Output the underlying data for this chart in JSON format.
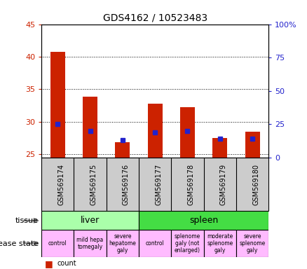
{
  "title": "GDS4162 / 10523483",
  "samples": [
    "GSM569174",
    "GSM569175",
    "GSM569176",
    "GSM569177",
    "GSM569178",
    "GSM569179",
    "GSM569180"
  ],
  "counts": [
    40.8,
    33.8,
    26.8,
    32.8,
    32.2,
    27.5,
    28.5
  ],
  "percentile_ranks": [
    31.5,
    30.0,
    28.5,
    29.8,
    30.0,
    28.8,
    28.8
  ],
  "percentile_ranks_pct": [
    25,
    20,
    13,
    19,
    20,
    14,
    14
  ],
  "ylim_left": [
    24.5,
    45
  ],
  "ylim_right": [
    0,
    100
  ],
  "yticks_left": [
    25,
    30,
    35,
    40,
    45
  ],
  "yticks_right": [
    0,
    25,
    50,
    75,
    100
  ],
  "ytick_labels_left": [
    "25",
    "30",
    "35",
    "40",
    "45"
  ],
  "ytick_labels_right": [
    "0",
    "25",
    "50",
    "75",
    "100%"
  ],
  "bar_color": "#cc2200",
  "dot_color": "#2222cc",
  "tissue_groups": [
    {
      "label": "liver",
      "start": 0,
      "end": 2,
      "color": "#aaffaa"
    },
    {
      "label": "spleen",
      "start": 3,
      "end": 6,
      "color": "#44dd44"
    }
  ],
  "disease_states": [
    {
      "label": "control",
      "col": 0,
      "color": "#ffbbff"
    },
    {
      "label": "mild hepa\ntomegaly",
      "col": 1,
      "color": "#ffbbff"
    },
    {
      "label": "severe\nhepatome\ngaly",
      "col": 2,
      "color": "#ffbbff"
    },
    {
      "label": "control",
      "col": 3,
      "color": "#ffbbff"
    },
    {
      "label": "splenome\ngaly (not\nenlarged)",
      "col": 4,
      "color": "#ffbbff"
    },
    {
      "label": "moderate\nsplenome\ngaly",
      "col": 5,
      "color": "#ffbbff"
    },
    {
      "label": "severe\nsplenome\ngaly",
      "col": 6,
      "color": "#ffbbff"
    }
  ],
  "sample_box_color": "#cccccc",
  "plot_bg": "#ffffff",
  "left_axis_color": "#cc2200",
  "right_axis_color": "#2222cc",
  "grid_color": "black",
  "label_fontsize": 8,
  "tick_fontsize": 8,
  "title_fontsize": 10
}
